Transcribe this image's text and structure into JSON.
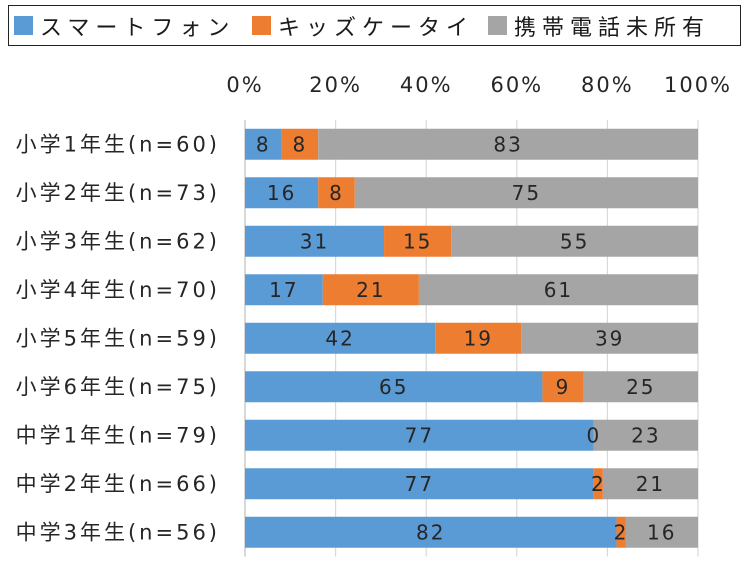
{
  "chart_data": {
    "type": "bar",
    "orientation": "horizontal",
    "stacked": "percent",
    "categories": [
      "小学1年生(n=60)",
      "小学2年生(n=73)",
      "小学3年生(n=62)",
      "小学4年生(n=70)",
      "小学5年生(n=59)",
      "小学6年生(n=75)",
      "中学1年生(n=79)",
      "中学2年生(n=66)",
      "中学3年生(n=56)"
    ],
    "series": [
      {
        "name": "スマートフォン",
        "color": "#5B9BD5",
        "values": [
          8,
          16,
          31,
          17,
          42,
          65,
          77,
          77,
          82
        ]
      },
      {
        "name": "キッズケータイ",
        "color": "#ED7D31",
        "values": [
          8,
          8,
          15,
          21,
          19,
          9,
          0,
          2,
          2
        ]
      },
      {
        "name": "携帯電話未所有",
        "color": "#A5A5A5",
        "values": [
          83,
          75,
          55,
          61,
          39,
          25,
          23,
          21,
          16
        ]
      }
    ],
    "x_ticks": [
      0,
      20,
      40,
      60,
      80,
      100
    ],
    "x_tick_labels": [
      "0%",
      "20%",
      "40%",
      "60%",
      "80%",
      "100%"
    ],
    "xlim": [
      0,
      100
    ],
    "grid": true,
    "data_labels": true,
    "legend_position": "top"
  }
}
